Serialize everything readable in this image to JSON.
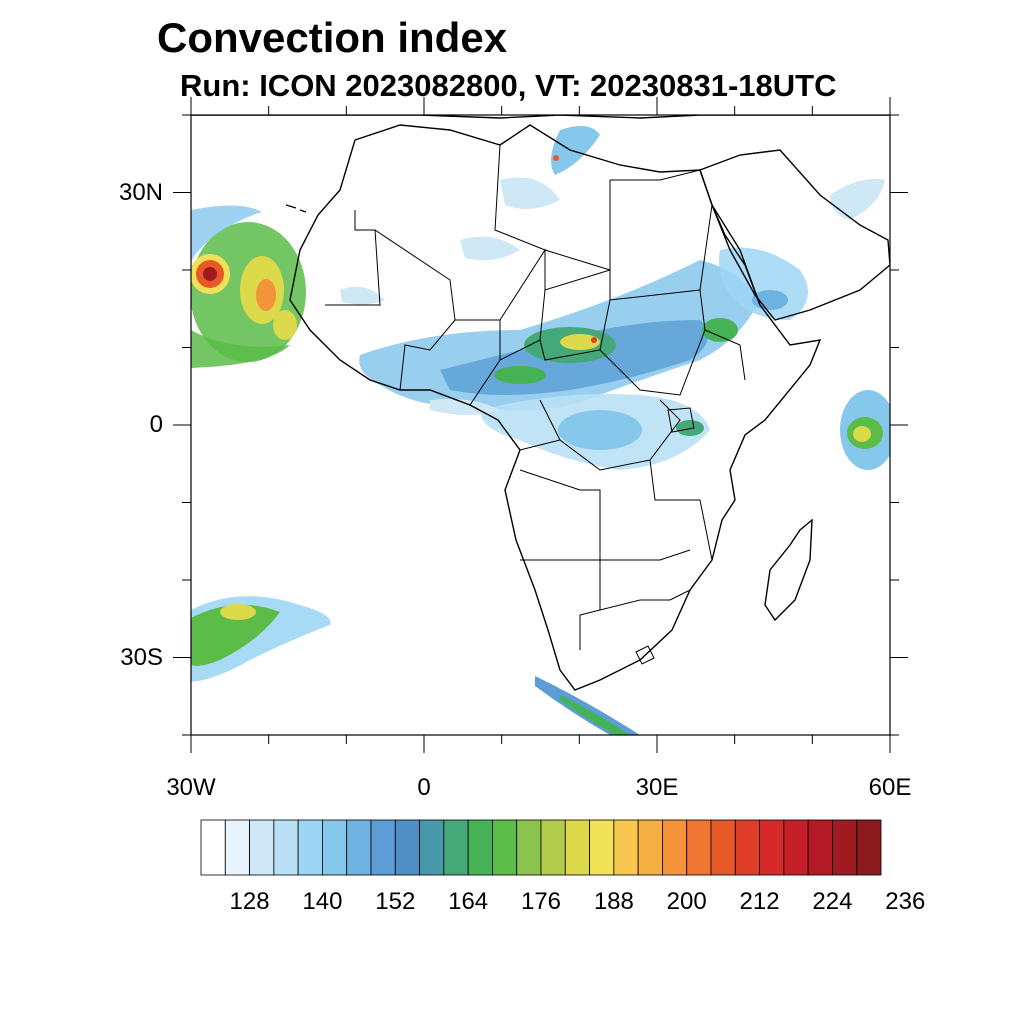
{
  "title": "Convection index",
  "subtitle": "Run: ICON 2023082800,  VT: 20230831-18UTC",
  "map": {
    "lon_range": [
      -30,
      60
    ],
    "lat_range": [
      -40,
      40
    ],
    "y_ticks": [
      {
        "lat": 30,
        "label": "30N"
      },
      {
        "lat": 0,
        "label": "0"
      },
      {
        "lat": -30,
        "label": "30S"
      }
    ],
    "x_ticks": [
      {
        "lon": -30,
        "label": "30W"
      },
      {
        "lon": 0,
        "label": "0"
      },
      {
        "lon": 30,
        "label": "30E"
      },
      {
        "lon": 60,
        "label": "60E"
      }
    ]
  },
  "colorbar": {
    "colors": [
      "#ffffff",
      "#e8f4fb",
      "#cfe8f6",
      "#b9e0f5",
      "#9dd6f4",
      "#86c7ec",
      "#6fb3e2",
      "#5b9dd4",
      "#4f8fc6",
      "#4798a8",
      "#45a879",
      "#46b256",
      "#5bbc48",
      "#8ac44f",
      "#b2cc4b",
      "#dcd94b",
      "#f1e156",
      "#f8c84e",
      "#f6b042",
      "#f3943a",
      "#ef7631",
      "#e8592a",
      "#e03e29",
      "#d62a2a",
      "#c51f2a",
      "#b41a26",
      "#a01a22",
      "#8c1a1c"
    ],
    "labels": [
      "128",
      "140",
      "152",
      "164",
      "176",
      "188",
      "200",
      "212",
      "224",
      "236"
    ]
  }
}
